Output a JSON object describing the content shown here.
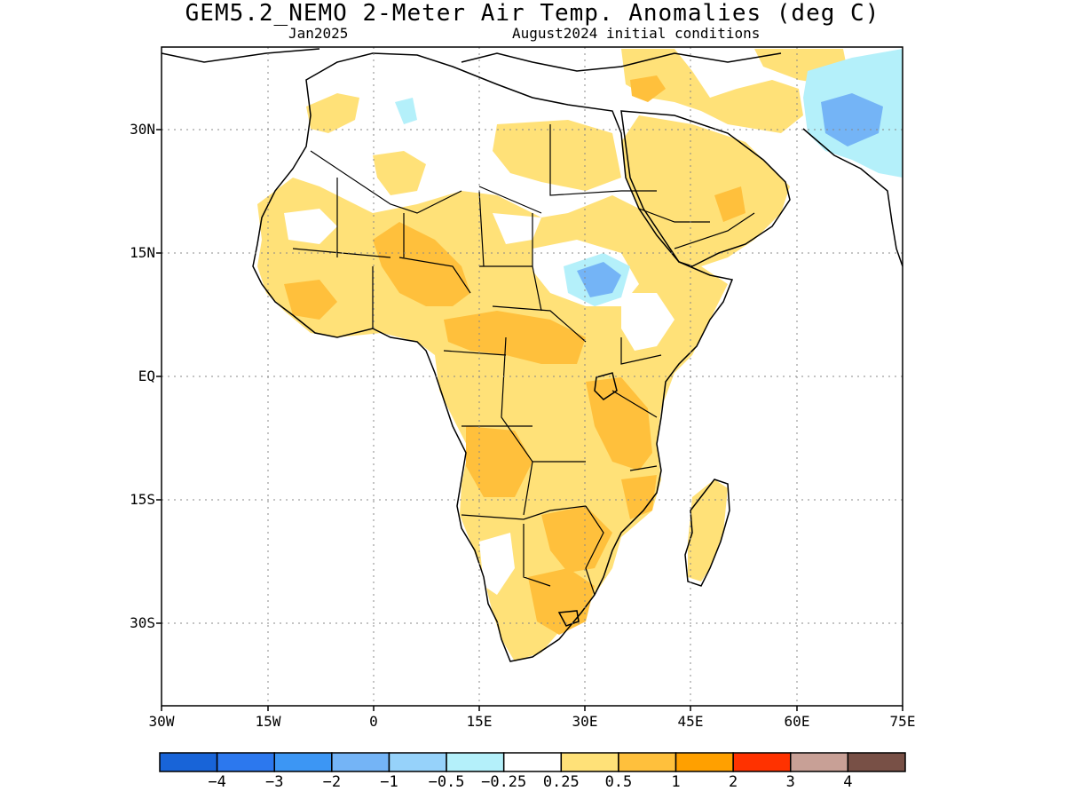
{
  "title": "GEM5.2_NEMO 2-Meter Air Temp. Anomalies (deg C)",
  "subtitle_left": "Jan2025",
  "subtitle_right": "August2024 initial conditions",
  "map": {
    "region": "Africa",
    "lat_ticks": [
      "30N",
      "15N",
      "EQ",
      "15S",
      "30S"
    ],
    "lon_ticks": [
      "30W",
      "15W",
      "0",
      "15E",
      "30E",
      "45E",
      "60E",
      "75E"
    ],
    "grid": "dotted"
  },
  "colorbar": {
    "colors": [
      "#1864d8",
      "#2c78ee",
      "#3c96f4",
      "#74b4f6",
      "#96d2fa",
      "#b4f0fa",
      "#ffffff",
      "#ffe178",
      "#ffc03c",
      "#ffa000",
      "#ff3200",
      "#c8a096",
      "#785046"
    ],
    "labels": [
      "-4",
      "-3",
      "-2",
      "-1",
      "-0.5",
      "-0.25",
      "0.25",
      "0.5",
      "1",
      "2",
      "3",
      "4"
    ]
  },
  "palette": {
    "land_neutral": "#ffffff",
    "warm_light": "#ffe178",
    "warm_mid": "#ffc03c",
    "cool_light": "#b4f0fa",
    "cool_mid": "#74b4f6",
    "cool_strong": "#3c96f4",
    "coast": "#000000"
  }
}
